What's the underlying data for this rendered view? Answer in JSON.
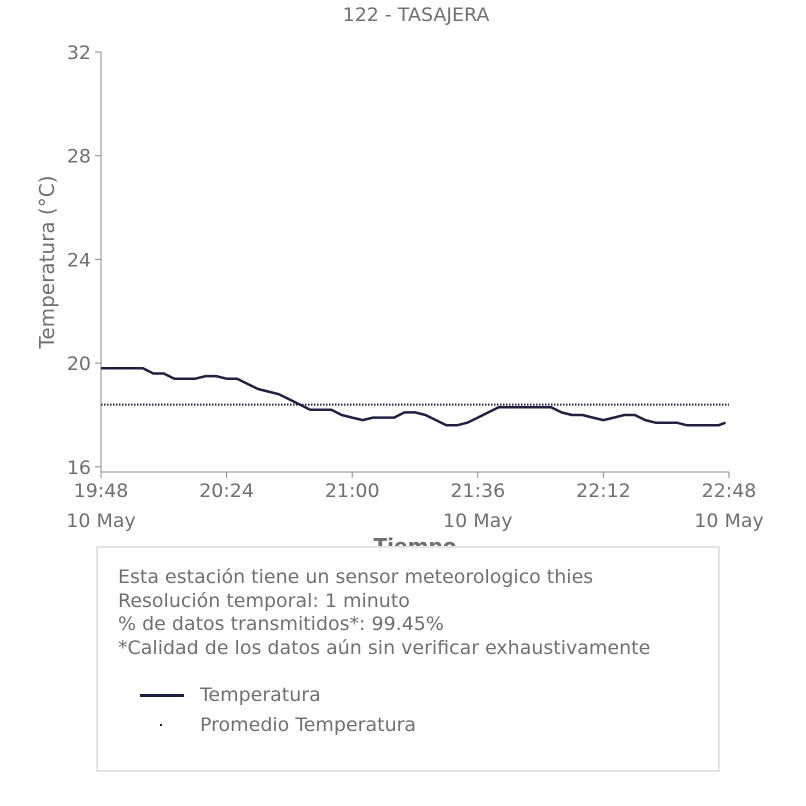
{
  "chart_data": {
    "type": "line",
    "title": "122 - TASAJERA",
    "xlabel": "Tiempo",
    "ylabel": "Temperatura (°C)",
    "xlim": [
      "19:48",
      "22:48"
    ],
    "ylim": [
      15.8,
      32
    ],
    "yticks": [
      16,
      20,
      24,
      28,
      32
    ],
    "xticks": [
      {
        "time": "19:48",
        "date": "10 May"
      },
      {
        "time": "20:24",
        "date": ""
      },
      {
        "time": "21:00",
        "date": ""
      },
      {
        "time": "21:36",
        "date": "10 May"
      },
      {
        "time": "22:12",
        "date": ""
      },
      {
        "time": "22:48",
        "date": "10 May"
      }
    ],
    "series": [
      {
        "name": "Temperatura",
        "color": "#1f2041",
        "style": "solid",
        "x": [
          "19:48",
          "19:51",
          "19:54",
          "19:57",
          "20:00",
          "20:03",
          "20:06",
          "20:09",
          "20:12",
          "20:15",
          "20:18",
          "20:21",
          "20:24",
          "20:27",
          "20:30",
          "20:33",
          "20:36",
          "20:39",
          "20:42",
          "20:45",
          "20:48",
          "20:51",
          "20:54",
          "20:57",
          "21:00",
          "21:03",
          "21:06",
          "21:09",
          "21:12",
          "21:15",
          "21:18",
          "21:21",
          "21:24",
          "21:27",
          "21:30",
          "21:33",
          "21:36",
          "21:39",
          "21:42",
          "21:45",
          "21:48",
          "21:51",
          "21:54",
          "21:57",
          "22:00",
          "22:03",
          "22:06",
          "22:09",
          "22:12",
          "22:15",
          "22:18",
          "22:21",
          "22:24",
          "22:27",
          "22:30",
          "22:33",
          "22:36",
          "22:39",
          "22:42",
          "22:45",
          "22:47"
        ],
        "values": [
          19.8,
          19.8,
          19.8,
          19.8,
          19.8,
          19.6,
          19.6,
          19.4,
          19.4,
          19.4,
          19.5,
          19.5,
          19.4,
          19.4,
          19.2,
          19.0,
          18.9,
          18.8,
          18.6,
          18.4,
          18.2,
          18.2,
          18.2,
          18.0,
          17.9,
          17.8,
          17.9,
          17.9,
          17.9,
          18.1,
          18.1,
          18.0,
          17.8,
          17.6,
          17.6,
          17.7,
          17.9,
          18.1,
          18.3,
          18.3,
          18.3,
          18.3,
          18.3,
          18.3,
          18.1,
          18.0,
          18.0,
          17.9,
          17.8,
          17.9,
          18.0,
          18.0,
          17.8,
          17.7,
          17.7,
          17.7,
          17.6,
          17.6,
          17.6,
          17.6,
          17.7
        ]
      },
      {
        "name": "Promedio Temperatura",
        "color": "#1f2041",
        "style": "dotted",
        "x": [
          "19:48",
          "22:48"
        ],
        "values": [
          18.4,
          18.4
        ]
      }
    ],
    "grid": false,
    "legend": "bottom"
  },
  "info": {
    "line1": "Esta estación tiene un sensor meteorologico thies",
    "line2": "Resolución temporal: 1 minuto",
    "line3": "% de datos transmitidos*: 99.45%",
    "line4": "*Calidad de los datos aún sin verificar exhaustivamente"
  },
  "legend": {
    "temp_label": "Temperatura",
    "avg_label": "Promedio Temperatura"
  }
}
